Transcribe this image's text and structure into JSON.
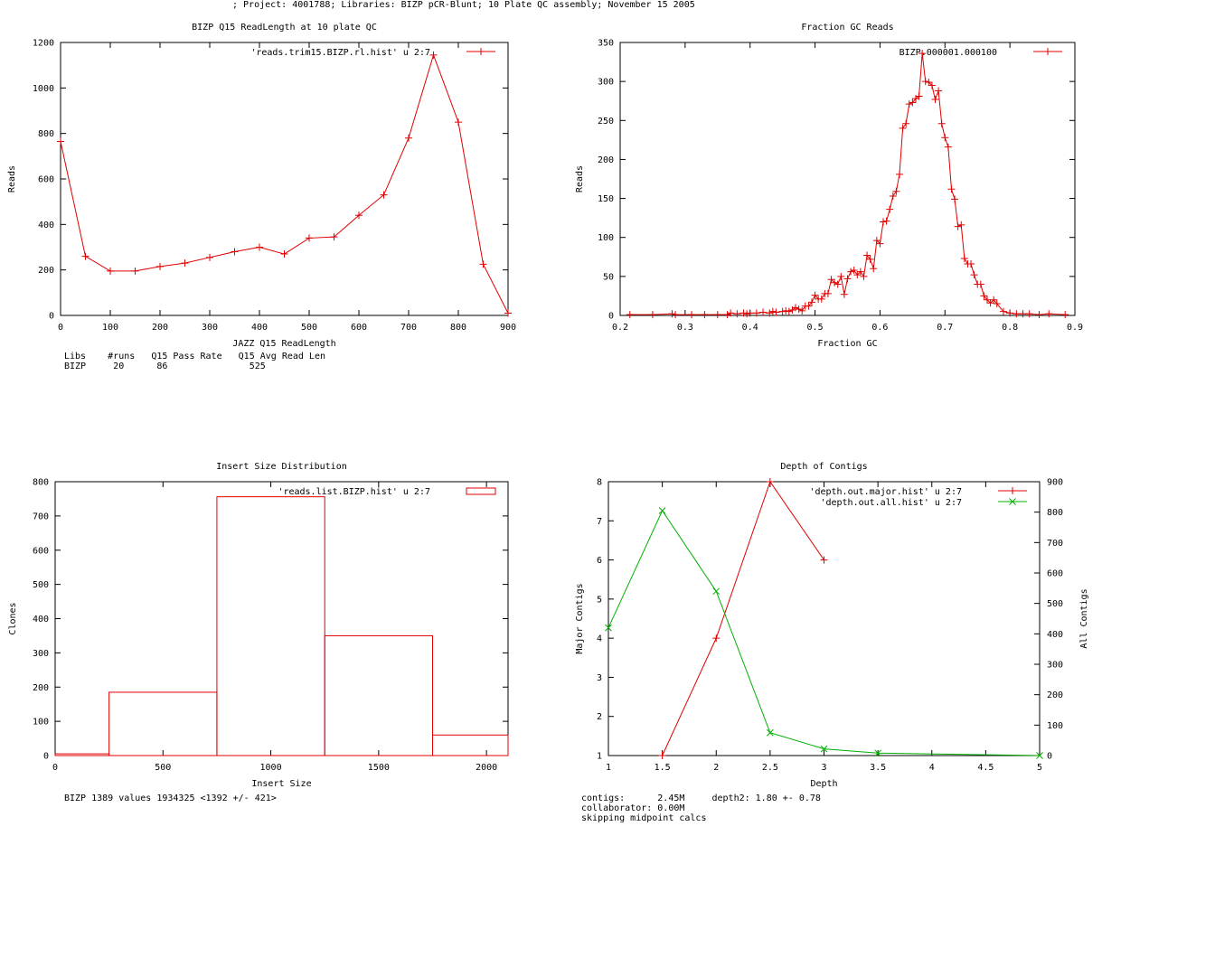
{
  "header": {
    "text": "; Project: 4001788; Libraries: BIZP pCR-Blunt; 10 Plate QC assembly; November 15 2005"
  },
  "colors": {
    "red": "#e00000",
    "green": "#00b000",
    "axis": "#000000"
  },
  "chart_data": [
    {
      "type": "line",
      "title": "BIZP Q15 ReadLength at 10 plate QC",
      "xlabel": "JAZZ Q15 ReadLength",
      "ylabel": "Reads",
      "xlim": [
        0,
        900
      ],
      "ylim": [
        0,
        1200
      ],
      "xticks": [
        0,
        100,
        200,
        300,
        400,
        500,
        600,
        700,
        800,
        900
      ],
      "yticks": [
        0,
        200,
        400,
        600,
        800,
        1000,
        1200
      ],
      "legend_position": "top-right",
      "grid": false,
      "series": [
        {
          "name": "'reads.trim15.BIZP.rl.hist' u 2:7",
          "color": "#e00000",
          "marker": "plus",
          "x": [
            0,
            50,
            100,
            150,
            200,
            250,
            300,
            350,
            400,
            450,
            500,
            550,
            600,
            650,
            700,
            750,
            800,
            850,
            900
          ],
          "y": [
            765,
            260,
            195,
            195,
            215,
            230,
            255,
            280,
            300,
            270,
            340,
            345,
            440,
            530,
            780,
            1145,
            850,
            225,
            10
          ]
        }
      ]
    },
    {
      "type": "line",
      "title": "Fraction GC Reads",
      "xlabel": "Fraction GC",
      "ylabel": "Reads",
      "xlim": [
        0.2,
        0.9
      ],
      "ylim": [
        0,
        350
      ],
      "xticks": [
        0.2,
        0.3,
        0.4,
        0.5,
        0.6,
        0.7,
        0.8,
        0.9
      ],
      "yticks": [
        0,
        50,
        100,
        150,
        200,
        250,
        300,
        350
      ],
      "legend_position": "top-right",
      "grid": false,
      "series": [
        {
          "name": "BIZP.000001.000100",
          "color": "#e00000",
          "marker": "plus",
          "x": [
            0.215,
            0.25,
            0.28,
            0.285,
            0.31,
            0.33,
            0.35,
            0.365,
            0.37,
            0.38,
            0.39,
            0.395,
            0.4,
            0.41,
            0.42,
            0.43,
            0.435,
            0.44,
            0.45,
            0.455,
            0.46,
            0.465,
            0.47,
            0.475,
            0.48,
            0.485,
            0.49,
            0.495,
            0.5,
            0.505,
            0.51,
            0.515,
            0.52,
            0.525,
            0.53,
            0.535,
            0.54,
            0.545,
            0.55,
            0.555,
            0.56,
            0.565,
            0.57,
            0.575,
            0.58,
            0.585,
            0.59,
            0.595,
            0.6,
            0.605,
            0.61,
            0.615,
            0.62,
            0.625,
            0.63,
            0.635,
            0.64,
            0.645,
            0.65,
            0.655,
            0.66,
            0.665,
            0.67,
            0.675,
            0.68,
            0.685,
            0.69,
            0.695,
            0.7,
            0.705,
            0.71,
            0.715,
            0.72,
            0.725,
            0.73,
            0.735,
            0.74,
            0.745,
            0.75,
            0.755,
            0.76,
            0.765,
            0.77,
            0.775,
            0.78,
            0.79,
            0.8,
            0.81,
            0.82,
            0.83,
            0.845,
            0.86,
            0.885
          ],
          "y": [
            1,
            1,
            2,
            1,
            1,
            1,
            1,
            1,
            3,
            2,
            3,
            2,
            3,
            3,
            4,
            3,
            5,
            4,
            5,
            6,
            5,
            7,
            10,
            8,
            6,
            12,
            12,
            17,
            26,
            21,
            21,
            28,
            28,
            46,
            42,
            40,
            50,
            27,
            47,
            56,
            58,
            52,
            56,
            50,
            77,
            72,
            60,
            96,
            92,
            120,
            121,
            136,
            153,
            159,
            181,
            240,
            246,
            271,
            273,
            278,
            281,
            336,
            300,
            299,
            295,
            277,
            288,
            246,
            228,
            216,
            162,
            149,
            114,
            116,
            73,
            66,
            66,
            52,
            40,
            40,
            25,
            20,
            16,
            20,
            15,
            5,
            3,
            2,
            2,
            2,
            1,
            2,
            1
          ]
        }
      ]
    },
    {
      "type": "bar",
      "title": "Insert Size Distribution",
      "xlabel": "Insert Size",
      "ylabel": "Clones",
      "xlim": [
        0,
        2100
      ],
      "ylim": [
        0,
        800
      ],
      "xticks": [
        0,
        500,
        1000,
        1500,
        2000
      ],
      "yticks": [
        0,
        100,
        200,
        300,
        400,
        500,
        600,
        700,
        800
      ],
      "legend_position": "top-right",
      "grid": false,
      "series": [
        {
          "name": "'reads.list.BIZP.hist' u 2:7",
          "color": "#e00000",
          "style": "boxes",
          "bins": [
            {
              "from": 0,
              "to": 250,
              "value": 5
            },
            {
              "from": 250,
              "to": 750,
              "value": 185
            },
            {
              "from": 750,
              "to": 1250,
              "value": 756
            },
            {
              "from": 1250,
              "to": 1750,
              "value": 350
            },
            {
              "from": 1750,
              "to": 2100,
              "value": 60
            }
          ]
        }
      ]
    },
    {
      "type": "line",
      "title": "Depth of Contigs",
      "xlabel": "Depth",
      "ylabel": "Major Contigs",
      "y2label": "All Contigs",
      "xlim": [
        1,
        5
      ],
      "ylim": [
        1,
        8
      ],
      "y2lim": [
        0,
        900
      ],
      "xticks": [
        1,
        1.5,
        2,
        2.5,
        3,
        3.5,
        4,
        4.5,
        5
      ],
      "yticks": [
        1,
        2,
        3,
        4,
        5,
        6,
        7,
        8
      ],
      "y2ticks": [
        0,
        100,
        200,
        300,
        400,
        500,
        600,
        700,
        800,
        900
      ],
      "legend_position": "top-right",
      "grid": false,
      "series": [
        {
          "name": "'depth.out.major.hist' u 2:7",
          "color": "#e00000",
          "marker": "plus",
          "axis": "y",
          "x": [
            1.5,
            2,
            2.5,
            3
          ],
          "y": [
            1,
            4,
            8,
            6
          ]
        },
        {
          "name": "'depth.out.all.hist' u 2:7",
          "color": "#00b000",
          "marker": "cross",
          "axis": "y2",
          "x": [
            1,
            1.5,
            2,
            2.5,
            3,
            3.5,
            5
          ],
          "y": [
            420,
            805,
            540,
            75,
            22,
            8,
            0
          ]
        }
      ]
    }
  ],
  "notes": {
    "readlength_table": "Libs    #runs   Q15 Pass Rate   Q15 Avg Read Len\nBIZP     20      86               525",
    "insert_summary": "BIZP 1389 values 1934325 <1392 +/- 421>",
    "depth_summary": "contigs:      2.45M     depth2: 1.80 +- 0.78\ncollaborator: 0.00M\nskipping midpoint calcs"
  }
}
